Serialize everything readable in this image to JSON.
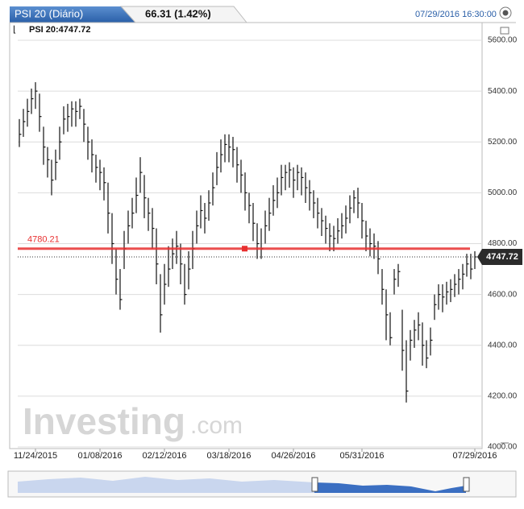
{
  "chart_data": {
    "type": "ohlc",
    "title": "PSI 20 (Diário)",
    "change": "66.31 (1.42%)",
    "timestamp": "07/29/2016 16:30:00",
    "legend": "PSI 20:4747.72",
    "logo": {
      "word": "Investing",
      "suffix": ".com"
    },
    "color": "#111111",
    "ylim": [
      4000,
      5600
    ],
    "yticks": [
      {
        "value": 4000,
        "label": "4000.00"
      },
      {
        "value": 4200,
        "label": "4200.00"
      },
      {
        "value": 4400,
        "label": "4400.00"
      },
      {
        "value": 4600,
        "label": "4600.00"
      },
      {
        "value": 4800,
        "label": "4800.00"
      },
      {
        "value": 5000,
        "label": "5000.00"
      },
      {
        "value": 5200,
        "label": "5200.00"
      },
      {
        "value": 5400,
        "label": "5400.00"
      },
      {
        "value": 5600,
        "label": "5600.00"
      }
    ],
    "xticks": [
      {
        "value": 4,
        "label": "11/24/2015"
      },
      {
        "value": 20,
        "label": "01/08/2016"
      },
      {
        "value": 36,
        "label": "02/12/2016"
      },
      {
        "value": 52,
        "label": "03/18/2016"
      },
      {
        "value": 68,
        "label": "04/26/2016"
      },
      {
        "value": 85,
        "label": "05/31/2016"
      },
      {
        "value": 113,
        "label": "07/29/2016"
      }
    ],
    "grid": true,
    "reference_line": {
      "value": 4780.21,
      "color": "#e83030"
    },
    "high": [
      5290,
      5330,
      5370,
      5410,
      5435,
      5390,
      5260,
      5180,
      5130,
      5170,
      5260,
      5340,
      5350,
      5360,
      5360,
      5370,
      5330,
      5260,
      5210,
      5150,
      5130,
      5100,
      5040,
      4920,
      4780,
      4700,
      4850,
      4930,
      4980,
      5060,
      5140,
      5070,
      4980,
      4940,
      4860,
      4680,
      4720,
      4790,
      4820,
      4850,
      4800,
      4720,
      4770,
      4850,
      4930,
      4990,
      4960,
      5010,
      5080,
      5160,
      5210,
      5230,
      5230,
      5220,
      5180,
      5130,
      5080,
      5000,
      4960,
      4880,
      4860,
      4930,
      4980,
      5030,
      5060,
      5110,
      5110,
      5120,
      5100,
      5110,
      5100,
      5080,
      5050,
      5010,
      4980,
      4940,
      4910,
      4880,
      4870,
      4900,
      4920,
      4950,
      4990,
      5010,
      5020,
      4960,
      4890,
      4860,
      4840,
      4810,
      4700,
      4620,
      4530,
      4700,
      4720,
      4540,
      4420,
      4460,
      4500,
      4530,
      4490,
      4420,
      4470,
      4600,
      4640,
      4640,
      4650,
      4660,
      4680,
      4700,
      4720,
      4760,
      4760,
      4770
    ],
    "low": [
      5180,
      5220,
      5260,
      5310,
      5330,
      5240,
      5110,
      5060,
      4990,
      5050,
      5130,
      5230,
      5240,
      5260,
      5260,
      5290,
      5200,
      5130,
      5080,
      5040,
      5010,
      4970,
      4840,
      4720,
      4600,
      4540,
      4700,
      4800,
      4860,
      4920,
      5000,
      4900,
      4850,
      4780,
      4640,
      4450,
      4560,
      4630,
      4700,
      4720,
      4640,
      4560,
      4620,
      4700,
      4800,
      4860,
      4840,
      4890,
      4950,
      5030,
      5080,
      5120,
      5120,
      5100,
      5040,
      5000,
      4930,
      4880,
      4810,
      4740,
      4740,
      4800,
      4850,
      4910,
      4940,
      4990,
      5010,
      5020,
      4980,
      5010,
      4990,
      4960,
      4930,
      4900,
      4860,
      4830,
      4800,
      4770,
      4770,
      4800,
      4820,
      4840,
      4880,
      4920,
      4900,
      4820,
      4770,
      4750,
      4740,
      4680,
      4560,
      4420,
      4400,
      4600,
      4630,
      4300,
      4175,
      4340,
      4390,
      4420,
      4320,
      4310,
      4360,
      4500,
      4540,
      4530,
      4560,
      4570,
      4590,
      4600,
      4620,
      4670,
      4660,
      4700
    ],
    "close": [
      5230,
      5280,
      5320,
      5370,
      5400,
      5300,
      5180,
      5130,
      5050,
      5120,
      5200,
      5290,
      5300,
      5330,
      5320,
      5340,
      5270,
      5200,
      5150,
      5100,
      5080,
      5040,
      4920,
      4800,
      4660,
      4580,
      4780,
      4870,
      4920,
      4990,
      5080,
      4980,
      4920,
      4860,
      4720,
      4520,
      4640,
      4700,
      4760,
      4790,
      4720,
      4600,
      4700,
      4780,
      4870,
      4930,
      4900,
      4960,
      5020,
      5100,
      5150,
      5190,
      5180,
      5170,
      5110,
      5070,
      5000,
      4950,
      4880,
      4800,
      4780,
      4870,
      4920,
      4970,
      5000,
      5060,
      5080,
      5090,
      5050,
      5080,
      5060,
      5020,
      5000,
      4960,
      4920,
      4890,
      4860,
      4830,
      4820,
      4850,
      4870,
      4900,
      4940,
      4980,
      4960,
      4890,
      4830,
      4800,
      4790,
      4740,
      4620,
      4520,
      4430,
      4660,
      4690,
      4380,
      4220,
      4420,
      4460,
      4480,
      4400,
      4350,
      4420,
      4560,
      4600,
      4590,
      4610,
      4620,
      4640,
      4660,
      4680,
      4720,
      4700,
      4747.72
    ]
  }
}
